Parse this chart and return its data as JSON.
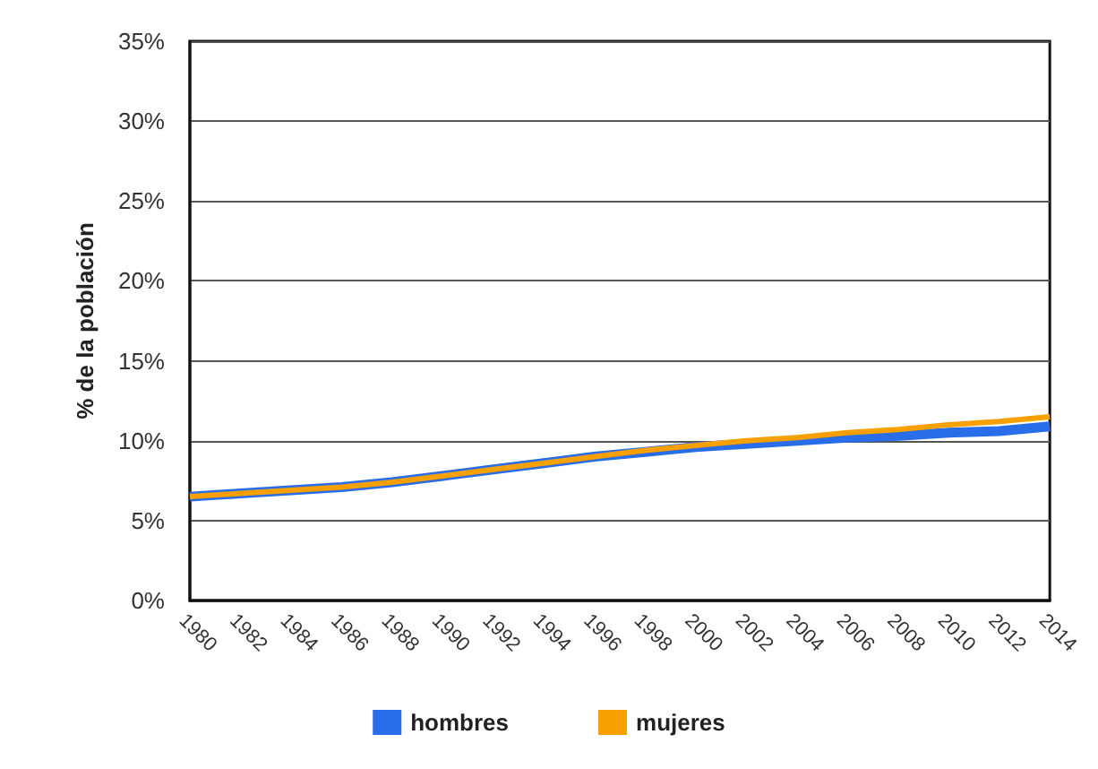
{
  "chart_data": {
    "type": "line",
    "ylabel": "% de la población",
    "x": [
      1980,
      1982,
      1984,
      1986,
      1988,
      1990,
      1992,
      1994,
      1996,
      1998,
      2000,
      2002,
      2004,
      2006,
      2008,
      2010,
      2012,
      2014
    ],
    "series": [
      {
        "name": "hombres",
        "color": "#2a6de8",
        "values": [
          6.5,
          6.7,
          6.9,
          7.1,
          7.4,
          7.8,
          8.2,
          8.6,
          9.0,
          9.3,
          9.6,
          9.8,
          10.0,
          10.2,
          10.3,
          10.5,
          10.6,
          10.9
        ]
      },
      {
        "name": "mujeres",
        "color": "#f7a000",
        "values": [
          6.5,
          6.7,
          6.9,
          7.1,
          7.4,
          7.8,
          8.2,
          8.6,
          9.0,
          9.4,
          9.7,
          10.0,
          10.2,
          10.5,
          10.7,
          11.0,
          11.2,
          11.5
        ]
      }
    ],
    "xlim": [
      1980,
      2014
    ],
    "xticks": [
      1980,
      1982,
      1984,
      1986,
      1988,
      1990,
      1992,
      1994,
      1996,
      1998,
      2000,
      2002,
      2004,
      2006,
      2008,
      2010,
      2012,
      2014
    ],
    "ylim": [
      0,
      35
    ],
    "yticks": [
      {
        "value": 0,
        "label": "0%"
      },
      {
        "value": 5,
        "label": "5%"
      },
      {
        "value": 10,
        "label": "10%"
      },
      {
        "value": 15,
        "label": "15%"
      },
      {
        "value": 20,
        "label": "20%"
      },
      {
        "value": 25,
        "label": "25%"
      },
      {
        "value": 30,
        "label": "30%"
      },
      {
        "value": 35,
        "label": "35%"
      }
    ],
    "grid": "y",
    "legend": "bottom",
    "marker": "none",
    "line_style": "solid"
  }
}
